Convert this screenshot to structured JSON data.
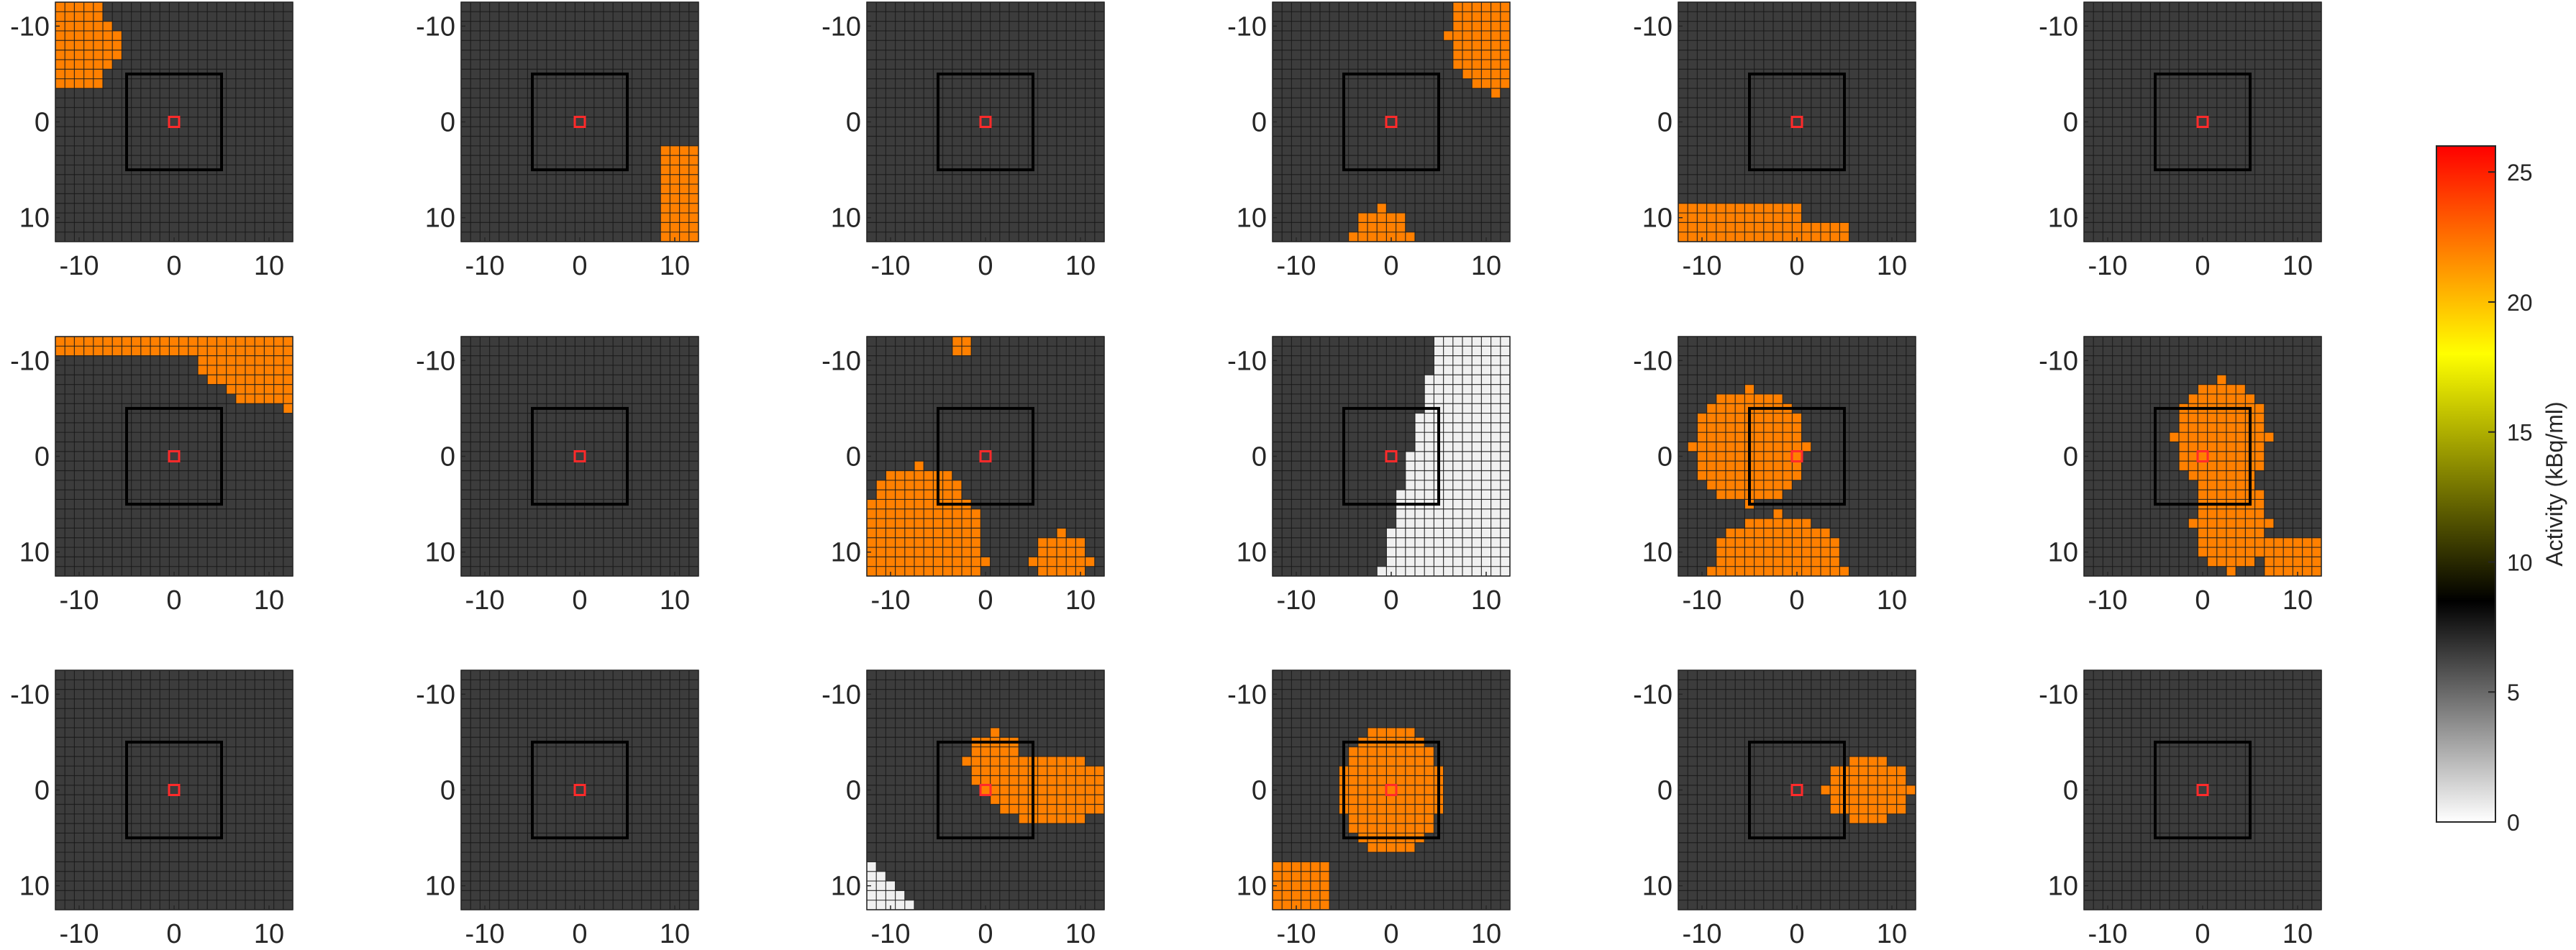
{
  "chart_data": {
    "type": "heatmap",
    "layout": {
      "rows": 3,
      "cols": 6
    },
    "grid_size": 25,
    "xlim": [
      -12,
      12
    ],
    "ylim": [
      -12,
      12
    ],
    "y_reversed": true,
    "x_ticks": [
      -10,
      0,
      10
    ],
    "y_ticks": [
      -10,
      0,
      10
    ],
    "roi_half_width": 5,
    "center_marker": [
      0,
      0
    ],
    "background_value": 6.5,
    "fill_value": 22,
    "colorbar": {
      "label": "Activity (kBq/ml)",
      "range": [
        0,
        26
      ],
      "ticks": [
        0,
        5,
        10,
        15,
        20,
        25
      ],
      "stops": [
        {
          "v": 0,
          "color": "#ffffff"
        },
        {
          "v": 8.5,
          "color": "#000000"
        },
        {
          "v": 18,
          "color": "#ffff00"
        },
        {
          "v": 26,
          "color": "#ff0000"
        }
      ]
    },
    "panels": [
      {
        "id": 1,
        "regions": [
          {
            "kind": "rect",
            "x0": -12,
            "x1": -8,
            "y0": -12,
            "y1": -4,
            "v": 22
          },
          {
            "kind": "circle",
            "cx": -9,
            "cy": -8,
            "r": 3.5,
            "v": 22
          }
        ]
      },
      {
        "id": 2,
        "regions": [
          {
            "kind": "rect",
            "x0": 9,
            "x1": 12,
            "y0": 3,
            "y1": 12,
            "v": 22
          }
        ]
      },
      {
        "id": 3,
        "regions": []
      },
      {
        "id": 4,
        "regions": [
          {
            "kind": "ellipse",
            "cx": 11,
            "cy": -9,
            "rx": 5,
            "ry": 6,
            "v": 22
          },
          {
            "kind": "ellipse",
            "cx": -1,
            "cy": 12,
            "rx": 3,
            "ry": 3,
            "v": 22
          }
        ]
      },
      {
        "id": 5,
        "regions": [
          {
            "kind": "rect",
            "x0": -12,
            "x1": 0,
            "y0": 9,
            "y1": 12,
            "v": 22
          },
          {
            "kind": "rect",
            "x0": 0,
            "x1": 5,
            "y0": 11,
            "y1": 12,
            "v": 22
          }
        ]
      },
      {
        "id": 6,
        "regions": []
      },
      {
        "id": 7,
        "regions": [
          {
            "kind": "rect",
            "x0": -12,
            "x1": 12,
            "y0": -12,
            "y1": -11,
            "v": 22
          },
          {
            "kind": "ellipse",
            "cx": 12,
            "cy": -12,
            "rx": 10,
            "ry": 7,
            "v": 22
          }
        ]
      },
      {
        "id": 8,
        "regions": []
      },
      {
        "id": 9,
        "regions": [
          {
            "kind": "ellipse",
            "cx": -7,
            "cy": 11,
            "rx": 7,
            "ry": 10,
            "v": 22
          },
          {
            "kind": "ellipse",
            "cx": 8,
            "cy": 11,
            "rx": 3,
            "ry": 3,
            "v": 22
          },
          {
            "kind": "rect",
            "x0": -3,
            "x1": -2,
            "y0": -12,
            "y1": -11,
            "v": 22
          }
        ]
      },
      {
        "id": 10,
        "regions": [
          {
            "kind": "band",
            "left_value": 6.5,
            "right_value": 0.5,
            "x_top": 5,
            "x_bottom": -1
          }
        ]
      },
      {
        "id": 11,
        "regions": [
          {
            "kind": "ellipse",
            "cx": -5,
            "cy": -1,
            "rx": 6,
            "ry": 6,
            "v": 22
          },
          {
            "kind": "ellipse",
            "cx": -2,
            "cy": 12,
            "rx": 7,
            "ry": 6,
            "v": 22
          }
        ]
      },
      {
        "id": 12,
        "regions": [
          {
            "kind": "ellipse",
            "cx": 2,
            "cy": -2,
            "rx": 5,
            "ry": 6,
            "v": 22
          },
          {
            "kind": "ellipse",
            "cx": 3,
            "cy": 7,
            "rx": 4,
            "ry": 5,
            "v": 22
          },
          {
            "kind": "rect",
            "x0": 7,
            "x1": 12,
            "y0": 9,
            "y1": 12,
            "v": 22
          }
        ]
      },
      {
        "id": 13,
        "regions": []
      },
      {
        "id": 14,
        "regions": []
      },
      {
        "id": 15,
        "regions": [
          {
            "kind": "ellipse",
            "cx": 7,
            "cy": 0,
            "rx": 7,
            "ry": 3.5,
            "v": 22
          },
          {
            "kind": "ellipse",
            "cx": 1,
            "cy": -3,
            "rx": 3,
            "ry": 3,
            "v": 22
          },
          {
            "kind": "corner",
            "x0": -12,
            "y0": 12,
            "size": 4,
            "v": 0.5
          }
        ]
      },
      {
        "id": 16,
        "regions": [
          {
            "kind": "ellipse",
            "cx": 0,
            "cy": 0,
            "rx": 5.5,
            "ry": 6.5,
            "v": 22
          },
          {
            "kind": "rect",
            "x0": -12,
            "x1": -7,
            "y0": 8,
            "y1": 12,
            "v": 22
          }
        ]
      },
      {
        "id": 17,
        "regions": [
          {
            "kind": "ellipse",
            "cx": 7.5,
            "cy": 0,
            "rx": 4.5,
            "ry": 3.5,
            "v": 22
          }
        ]
      },
      {
        "id": 18,
        "regions": []
      }
    ]
  }
}
